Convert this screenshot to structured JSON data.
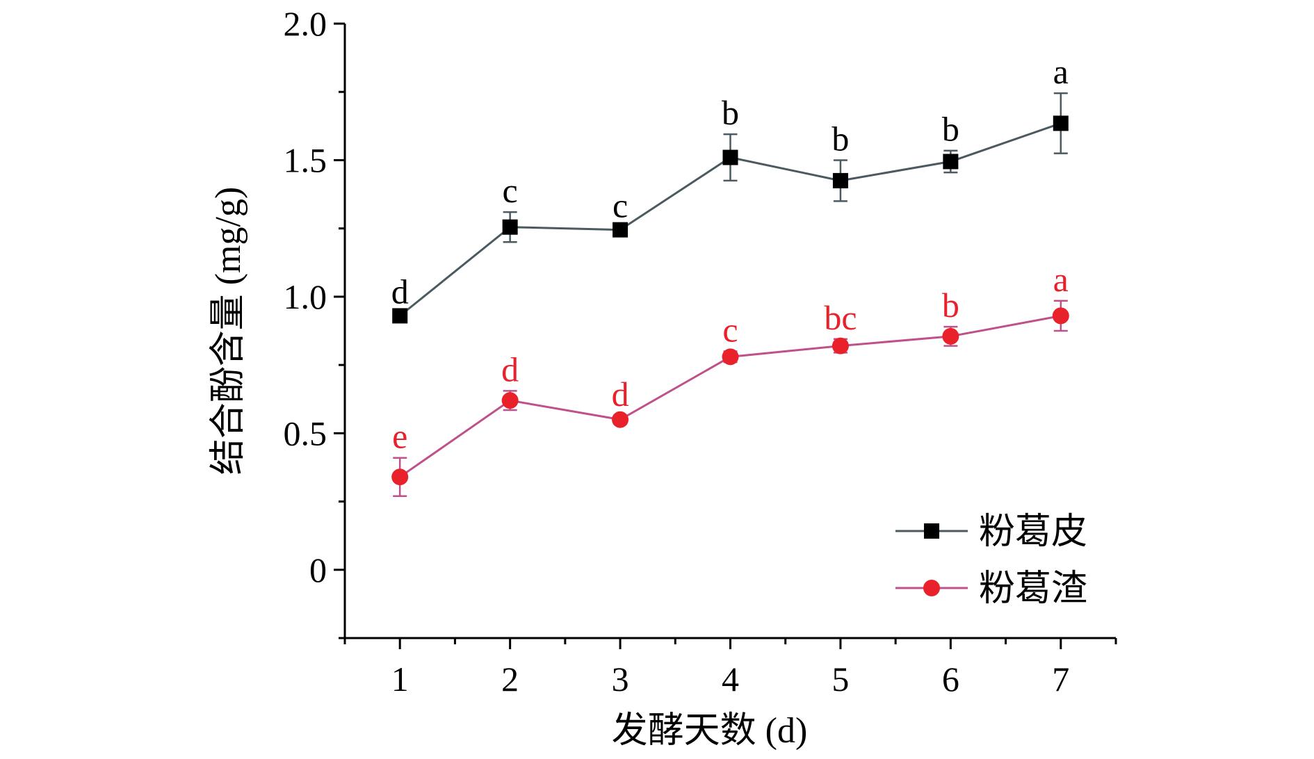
{
  "chart_data": {
    "type": "line",
    "title": "",
    "xlabel": "发酵天数 (d)",
    "ylabel": "结合酚含量 (mg/g)",
    "x": [
      1,
      2,
      3,
      4,
      5,
      6,
      7
    ],
    "xticks": [
      "1",
      "2",
      "3",
      "4",
      "5",
      "6",
      "7"
    ],
    "xlim": [
      0.5,
      7.5
    ],
    "ylim": [
      -0.25,
      2.0
    ],
    "yticks": [
      "0",
      "0.5",
      "1.0",
      "1.5",
      "2.0"
    ],
    "ytick_values": [
      0,
      0.5,
      1.0,
      1.5,
      2.0
    ],
    "grid": false,
    "legend_position": "bottom-right",
    "series": [
      {
        "name": "粉葛皮",
        "marker": "square",
        "color": "#000000",
        "line_color": "#4a5a60",
        "values": [
          0.93,
          1.255,
          1.245,
          1.51,
          1.425,
          1.495,
          1.635
        ],
        "errors": [
          0.01,
          0.055,
          0.01,
          0.085,
          0.075,
          0.04,
          0.11
        ],
        "labels": [
          "d",
          "c",
          "c",
          "b",
          "b",
          "b",
          "a"
        ],
        "label_color": "#000000"
      },
      {
        "name": "粉葛渣",
        "marker": "circle",
        "color": "#e8212b",
        "line_color": "#c0508a",
        "values": [
          0.34,
          0.62,
          0.55,
          0.78,
          0.82,
          0.855,
          0.93
        ],
        "errors": [
          0.07,
          0.035,
          0.015,
          0.02,
          0.025,
          0.035,
          0.055
        ],
        "labels": [
          "e",
          "d",
          "d",
          "c",
          "bc",
          "b",
          "a"
        ],
        "label_color": "#e8212b"
      }
    ]
  }
}
